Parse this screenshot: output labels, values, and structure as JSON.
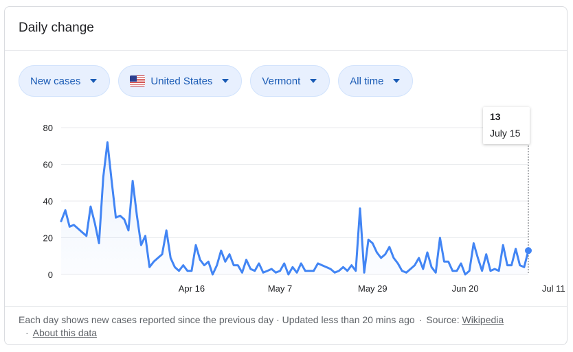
{
  "title": "Daily change",
  "filters": [
    {
      "label": "New cases",
      "flag": false
    },
    {
      "label": "United States",
      "flag": true,
      "icon": "us-flag-icon"
    },
    {
      "label": "Vermont",
      "flag": false
    },
    {
      "label": "All time",
      "flag": false
    }
  ],
  "tooltip": {
    "value": "13",
    "date": "July 15"
  },
  "footer": {
    "note": "Each day shows new cases reported since the previous day · Updated less than 20 mins ago",
    "source_prefix": "Source:",
    "source_link": "Wikipedia",
    "about_link": "About this data"
  },
  "colors": {
    "line": "#4285f4",
    "grid": "#e8eaed",
    "text": "#202124",
    "chip_bg": "#e8f0fe",
    "chip_text": "#1a5bb5"
  },
  "chart_data": {
    "type": "area",
    "ylim": [
      0,
      80
    ],
    "yticks": [
      0,
      20,
      40,
      60,
      80
    ],
    "xlabels": [
      "Apr 16",
      "May 7",
      "May 29",
      "Jun 20",
      "Jul 11"
    ],
    "x_start": "Mar 16",
    "x_end": "Jul 15",
    "values": [
      29,
      35,
      26,
      27,
      25,
      23,
      21,
      37,
      28,
      17,
      53,
      72,
      51,
      31,
      32,
      30,
      24,
      51,
      32,
      16,
      21,
      4,
      7,
      9,
      11,
      24,
      9,
      4,
      2,
      5,
      2,
      2,
      16,
      8,
      5,
      7,
      0,
      5,
      13,
      7,
      11,
      5,
      5,
      1,
      8,
      3,
      2,
      6,
      1,
      2,
      3,
      1,
      2,
      6,
      0,
      4,
      1,
      6,
      2,
      2,
      2,
      6,
      5,
      4,
      3,
      1,
      2,
      4,
      2,
      5,
      2,
      36,
      1,
      19,
      17,
      12,
      9,
      11,
      15,
      9,
      6,
      2,
      1,
      3,
      5,
      9,
      3,
      12,
      4,
      1,
      20,
      7,
      7,
      2,
      2,
      6,
      0,
      2,
      17,
      9,
      2,
      11,
      2,
      3,
      2,
      16,
      5,
      5,
      14,
      5,
      4,
      13
    ],
    "highlight": {
      "label": "July 15",
      "value": 13
    }
  }
}
